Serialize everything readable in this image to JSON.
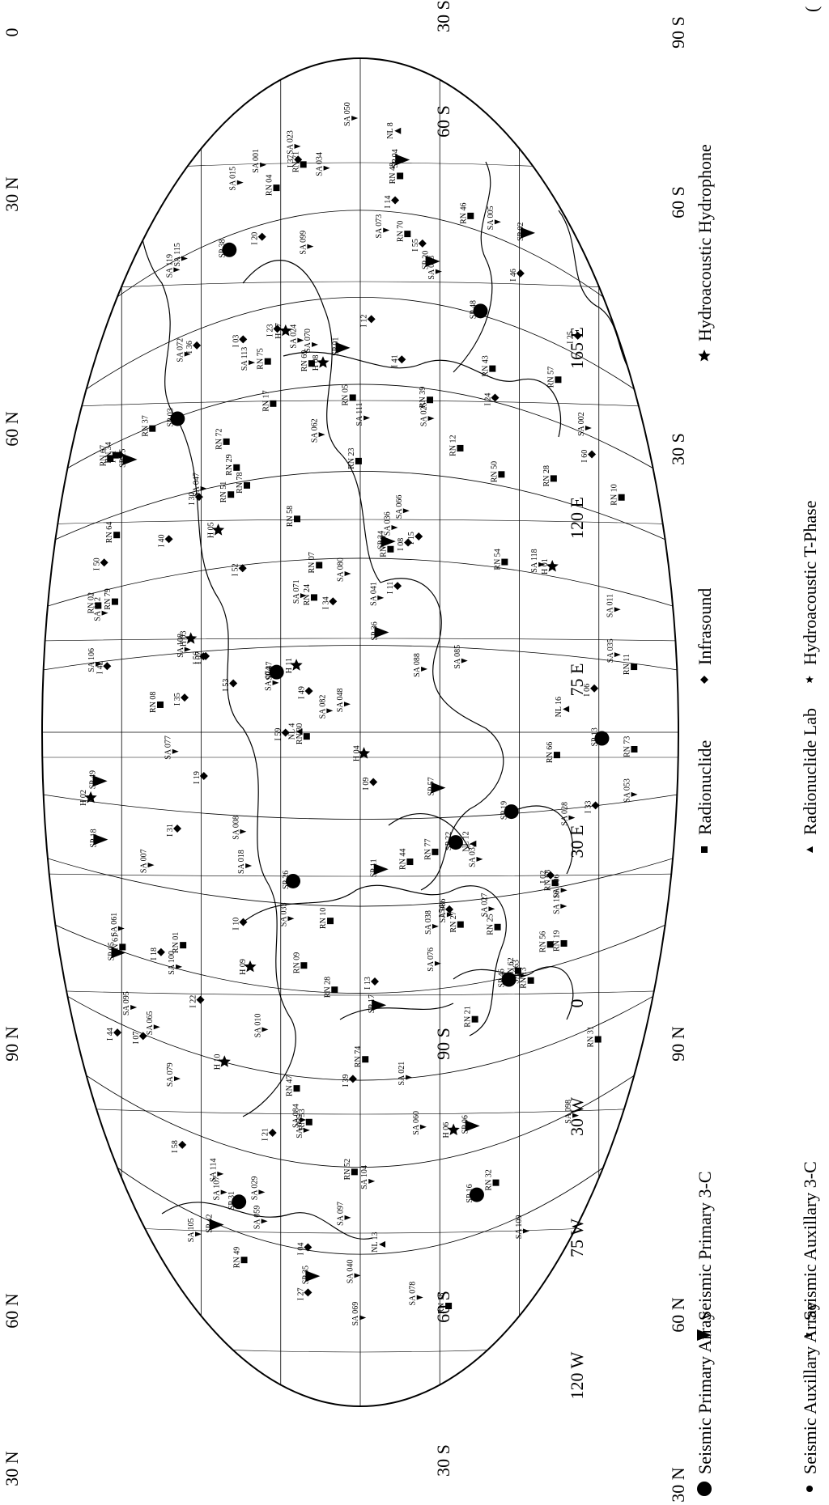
{
  "edge_labels": {
    "top": [
      "30 N",
      "60 N",
      "90 N",
      "60 N",
      "30 N",
      "0",
      "30 S",
      "60 S",
      "90 S",
      "60 S",
      "30 S"
    ],
    "bottom": [
      "30 N",
      "60 N",
      "90 N",
      "60 N",
      "30 N",
      "0",
      "30 S",
      "60 S",
      "90 S",
      "60 S",
      "30 S"
    ],
    "top_extra": "(",
    "meridians": [
      "165 E",
      "120 E",
      "75 E",
      "30 E",
      "0",
      "30 W",
      "75 W",
      "120 W"
    ]
  },
  "legend": [
    {
      "symbol": "big-circle",
      "label": "Seismic Primary Array"
    },
    {
      "symbol": "small-circle",
      "label": "Seismic Auxillary Array"
    },
    {
      "symbol": "big-triangle",
      "label": "Seismic Primary 3-C"
    },
    {
      "symbol": "small-triangle",
      "label": "Seismic Auxillary 3-C"
    },
    {
      "symbol": "square",
      "label": "Radionuclide"
    },
    {
      "symbol": "down-triangle",
      "label": "Radionuclide Lab"
    },
    {
      "symbol": "diamond",
      "label": "Infrasound"
    },
    {
      "symbol": "big-star",
      "label": "Hydroacoustic Hydrophone"
    },
    {
      "symbol": "small-star",
      "label": "Hydroacoustic T-Phase"
    }
  ],
  "stations": [
    {
      "label": "RN 79",
      "type": "square"
    },
    {
      "label": "I 59",
      "type": "diamond"
    },
    {
      "label": "RN 39",
      "type": "square"
    },
    {
      "label": "SA 024",
      "type": "small-triangle"
    },
    {
      "label": "RN 23",
      "type": "square"
    },
    {
      "label": "SA 095",
      "type": "small-triangle"
    },
    {
      "label": "RN 78",
      "type": "square"
    },
    {
      "label": "I 58",
      "type": "diamond"
    },
    {
      "label": "SA 070",
      "type": "small-triangle"
    },
    {
      "label": "RN 26",
      "type": "square"
    },
    {
      "label": "SA 032",
      "type": "small-triangle"
    },
    {
      "label": "RN 71",
      "type": "square"
    },
    {
      "label": "RN 77",
      "type": "square"
    },
    {
      "label": "I 60",
      "type": "diamond"
    },
    {
      "label": "H 11",
      "type": "big-star"
    },
    {
      "label": "RN 47",
      "type": "square"
    },
    {
      "label": "SA 071",
      "type": "small-triangle"
    },
    {
      "label": "I 36",
      "type": "diamond"
    },
    {
      "label": "RN 46",
      "type": "square"
    },
    {
      "label": "I 22",
      "type": "diamond"
    },
    {
      "label": "SA 098",
      "type": "small-triangle"
    },
    {
      "label": "NL 12",
      "type": "down-triangle"
    },
    {
      "label": "SA 069",
      "type": "small-triangle"
    },
    {
      "label": "RN 51",
      "type": "square"
    },
    {
      "label": "I 40",
      "type": "diamond"
    },
    {
      "label": "SA 076",
      "type": "small-triangle"
    },
    {
      "label": "SA 105",
      "type": "small-triangle"
    },
    {
      "label": "RN 10",
      "type": "square"
    },
    {
      "label": "SA 041",
      "type": "small-triangle"
    },
    {
      "label": "SA 055",
      "type": "small-triangle"
    },
    {
      "label": "SP 36",
      "type": "big-triangle"
    },
    {
      "label": "I 44",
      "type": "diamond"
    },
    {
      "label": "RN 57",
      "type": "square"
    },
    {
      "label": "SA 086",
      "type": "small-triangle"
    },
    {
      "label": "SA 060",
      "type": "small-triangle"
    },
    {
      "label": "SA 079",
      "type": "small-triangle"
    },
    {
      "label": "I 39",
      "type": "diamond"
    },
    {
      "label": "SP 02",
      "type": "big-triangle"
    },
    {
      "label": "I 07",
      "type": "diamond"
    },
    {
      "label": "SP 03",
      "type": "big-circle"
    },
    {
      "label": "SA 005",
      "type": "small-triangle"
    },
    {
      "label": "SP 04",
      "type": "big-triangle"
    },
    {
      "label": "RN 04",
      "type": "square"
    },
    {
      "label": "RN 07",
      "type": "square"
    },
    {
      "label": "RN 09",
      "type": "square"
    },
    {
      "label": "SP 31",
      "type": "big-circle"
    },
    {
      "label": "SP 22",
      "type": "big-circle"
    },
    {
      "label": "I 30",
      "type": "diamond"
    },
    {
      "label": "RN 37",
      "type": "square"
    },
    {
      "label": "SA 053",
      "type": "small-triangle"
    },
    {
      "label": "RN 58",
      "type": "square"
    },
    {
      "label": "RN 52",
      "type": "square"
    },
    {
      "label": "SA 080",
      "type": "small-triangle"
    },
    {
      "label": "SA 088",
      "type": "small-triangle"
    },
    {
      "label": "SA 006",
      "type": "small-triangle"
    },
    {
      "label": "I 04",
      "type": "diamond"
    },
    {
      "label": "H 01",
      "type": "big-star"
    },
    {
      "label": "RN 10",
      "type": "square"
    },
    {
      "label": "RN 32",
      "type": "square"
    },
    {
      "label": "SA 040",
      "type": "small-triangle"
    },
    {
      "label": "SA 021",
      "type": "small-triangle"
    },
    {
      "label": "SA 023",
      "type": "small-triangle"
    },
    {
      "label": "SP 13",
      "type": "big-circle"
    },
    {
      "label": "I 15",
      "type": "diamond"
    },
    {
      "label": "RN 21",
      "type": "square"
    },
    {
      "label": "I 34",
      "type": "diamond"
    },
    {
      "label": "RN 56",
      "type": "square"
    },
    {
      "label": "SP 35",
      "type": "big-triangle"
    },
    {
      "label": "I 55",
      "type": "diamond"
    },
    {
      "label": "SP 20",
      "type": "big-triangle"
    },
    {
      "label": "RN 08",
      "type": "square"
    },
    {
      "label": "I 06",
      "type": "diamond"
    },
    {
      "label": "SA 007",
      "type": "small-triangle"
    },
    {
      "label": "SA 100",
      "type": "small-triangle"
    },
    {
      "label": "SA 114",
      "type": "small-triangle"
    },
    {
      "label": "SP 34",
      "type": "big-triangle"
    },
    {
      "label": "I 46",
      "type": "diamond"
    },
    {
      "label": "I 52",
      "type": "diamond"
    },
    {
      "label": "RN 66",
      "type": "square"
    },
    {
      "label": "H 08",
      "type": "big-star"
    },
    {
      "label": "SA 074",
      "type": "small-triangle"
    },
    {
      "label": "RN 30",
      "type": "square"
    },
    {
      "label": "I 23",
      "type": "diamond"
    },
    {
      "label": "SP 05",
      "type": "big-triangle"
    },
    {
      "label": "RN 05",
      "type": "square"
    },
    {
      "label": "I 03",
      "type": "diamond"
    },
    {
      "label": "SA 085",
      "type": "small-triangle"
    },
    {
      "label": "I 31",
      "type": "diamond"
    },
    {
      "label": "SA 059",
      "type": "small-triangle"
    },
    {
      "label": "RN 54",
      "type": "square"
    },
    {
      "label": "RN 61",
      "type": "square"
    },
    {
      "label": "NL 13",
      "type": "down-triangle"
    },
    {
      "label": "SA 047",
      "type": "small-triangle"
    },
    {
      "label": "SP 38",
      "type": "big-circle"
    },
    {
      "label": "SA 028",
      "type": "small-triangle"
    },
    {
      "label": "RN 25",
      "type": "square"
    },
    {
      "label": "I 19",
      "type": "diamond"
    },
    {
      "label": "SA 061",
      "type": "small-triangle"
    },
    {
      "label": "I 33",
      "type": "diamond"
    },
    {
      "label": "RN 29",
      "type": "square"
    },
    {
      "label": "H 04",
      "type": "big-star"
    },
    {
      "label": "RN 64",
      "type": "square"
    },
    {
      "label": "RN 62",
      "type": "square"
    },
    {
      "label": "SA 048",
      "type": "small-triangle"
    },
    {
      "label": "SA 036",
      "type": "small-triangle"
    },
    {
      "label": "SA 029",
      "type": "small-triangle"
    },
    {
      "label": "SP 16",
      "type": "big-circle"
    },
    {
      "label": "SA 084",
      "type": "small-triangle"
    },
    {
      "label": "I 37",
      "type": "diamond"
    },
    {
      "label": "RN 28",
      "type": "square"
    },
    {
      "label": "SA 072",
      "type": "small-triangle"
    },
    {
      "label": "RN 49",
      "type": "square"
    },
    {
      "label": "SP 19",
      "type": "big-circle"
    },
    {
      "label": "SA 050",
      "type": "small-triangle"
    },
    {
      "label": "SA 099",
      "type": "small-triangle"
    },
    {
      "label": "SA 062",
      "type": "small-triangle"
    },
    {
      "label": "I 35",
      "type": "diamond"
    },
    {
      "label": "I 12",
      "type": "diamond"
    },
    {
      "label": "SP 11",
      "type": "big-triangle"
    },
    {
      "label": "SA 034",
      "type": "small-triangle"
    },
    {
      "label": "SA 035",
      "type": "small-triangle"
    },
    {
      "label": "I 27",
      "type": "diamond"
    },
    {
      "label": "RN 48",
      "type": "square"
    },
    {
      "label": "SP 26",
      "type": "big-circle"
    },
    {
      "label": "RN 13",
      "type": "square"
    },
    {
      "label": "SA 104",
      "type": "small-triangle"
    },
    {
      "label": "NL 8",
      "type": "down-triangle"
    },
    {
      "label": "SA 066",
      "type": "small-triangle"
    },
    {
      "label": "SP 42",
      "type": "big-triangle"
    },
    {
      "label": "SA 073",
      "type": "small-triangle"
    },
    {
      "label": "SA 038",
      "type": "small-triangle"
    },
    {
      "label": "RN 34",
      "type": "square"
    },
    {
      "label": "SA 082",
      "type": "small-triangle"
    },
    {
      "label": "SA 097",
      "type": "small-triangle"
    },
    {
      "label": "SP 15",
      "type": "big-triangle"
    },
    {
      "label": "RN 67",
      "type": "square"
    },
    {
      "label": "I 50",
      "type": "diamond"
    },
    {
      "label": "H 10",
      "type": "big-star"
    },
    {
      "label": "I 49",
      "type": "diamond"
    },
    {
      "label": "RN 68",
      "type": "square"
    },
    {
      "label": "H 09",
      "type": "big-star"
    },
    {
      "label": "RN 69",
      "type": "square"
    },
    {
      "label": "RN 43",
      "type": "square"
    },
    {
      "label": "I 11",
      "type": "diamond"
    },
    {
      "label": "RN 53",
      "type": "square"
    },
    {
      "label": "I 42",
      "type": "diamond"
    },
    {
      "label": "H 07",
      "type": "big-star"
    },
    {
      "label": "SA 027",
      "type": "small-triangle"
    },
    {
      "label": "I 18",
      "type": "diamond"
    },
    {
      "label": "SA 012",
      "type": "small-triangle"
    },
    {
      "label": "RN 17",
      "type": "square"
    },
    {
      "label": "SA 011",
      "type": "small-triangle"
    },
    {
      "label": "RN 12",
      "type": "square"
    },
    {
      "label": "RN 11",
      "type": "square"
    },
    {
      "label": "NL 4",
      "type": "down-triangle"
    },
    {
      "label": "SA 033",
      "type": "small-triangle"
    },
    {
      "label": "RN 31",
      "type": "square"
    },
    {
      "label": "I 25",
      "type": "diamond"
    },
    {
      "label": "H 05",
      "type": "big-star"
    },
    {
      "label": "SA 116",
      "type": "small-triangle"
    },
    {
      "label": "SA 118",
      "type": "small-triangle"
    },
    {
      "label": "SA 010",
      "type": "small-triangle"
    },
    {
      "label": "I 07",
      "type": "diamond"
    },
    {
      "label": "I 09",
      "type": "diamond"
    },
    {
      "label": "SA 008",
      "type": "small-triangle"
    },
    {
      "label": "RN 02",
      "type": "square"
    },
    {
      "label": "SA 001",
      "type": "small-triangle"
    },
    {
      "label": "SP 01",
      "type": "big-triangle"
    },
    {
      "label": "I 41",
      "type": "diamond"
    },
    {
      "label": "RN 01",
      "type": "square"
    },
    {
      "label": "I 08",
      "type": "diamond"
    },
    {
      "label": "SP 06",
      "type": "big-triangle"
    },
    {
      "label": "SA 078",
      "type": "small-triangle"
    },
    {
      "label": "SA 077",
      "type": "small-triangle"
    },
    {
      "label": "I 14",
      "type": "diamond"
    },
    {
      "label": "H 03",
      "type": "big-star"
    },
    {
      "label": "SA 106",
      "type": "small-triangle"
    },
    {
      "label": "RN 73",
      "type": "square"
    },
    {
      "label": "I 54",
      "type": "diamond"
    },
    {
      "label": "SA 002",
      "type": "small-triangle"
    },
    {
      "label": "I 02",
      "type": "diamond"
    },
    {
      "label": "RN 18",
      "type": "square"
    },
    {
      "label": "I 51",
      "type": "diamond"
    },
    {
      "label": "RN 28",
      "type": "square"
    },
    {
      "label": "SP 17",
      "type": "big-triangle"
    },
    {
      "label": "SA 119",
      "type": "small-triangle"
    },
    {
      "label": "SA 025",
      "type": "small-triangle"
    },
    {
      "label": "RN 50",
      "type": "square"
    },
    {
      "label": "RN 75",
      "type": "square"
    },
    {
      "label": "SA 107",
      "type": "small-triangle"
    },
    {
      "label": "RN 72",
      "type": "square"
    },
    {
      "label": "SP 48",
      "type": "big-circle"
    },
    {
      "label": "I 10",
      "type": "diamond"
    },
    {
      "label": "RN 74",
      "type": "square"
    },
    {
      "label": "SA 111",
      "type": "small-triangle"
    },
    {
      "label": "SP 46",
      "type": "big-circle"
    },
    {
      "label": "SA 063",
      "type": "small-triangle"
    },
    {
      "label": "SP 57",
      "type": "big-triangle"
    },
    {
      "label": "RN 24",
      "type": "square"
    },
    {
      "label": "I 20",
      "type": "diamond"
    },
    {
      "label": "SA 113",
      "type": "small-triangle"
    },
    {
      "label": "SA 115",
      "type": "small-triangle"
    },
    {
      "label": "I 56",
      "type": "diamond"
    },
    {
      "label": "SA 015",
      "type": "small-triangle"
    },
    {
      "label": "SA 013",
      "type": "small-triangle"
    },
    {
      "label": "SP 49",
      "type": "big-triangle"
    },
    {
      "label": "I 53",
      "type": "diamond"
    },
    {
      "label": "H 02",
      "type": "big-star"
    },
    {
      "label": "SA 109",
      "type": "small-triangle"
    },
    {
      "label": "SP 47",
      "type": "big-circle"
    },
    {
      "label": "RN 70",
      "type": "square"
    },
    {
      "label": "NL 16",
      "type": "down-triangle"
    },
    {
      "label": "SA 108",
      "type": "small-triangle"
    },
    {
      "label": "RN 44",
      "type": "square"
    },
    {
      "label": "SA 065",
      "type": "small-triangle"
    },
    {
      "label": "H 06",
      "type": "big-star"
    },
    {
      "label": "SA 018",
      "type": "small-triangle"
    },
    {
      "label": "I 13",
      "type": "diamond"
    },
    {
      "label": "RN 19",
      "type": "square"
    },
    {
      "label": "I 21",
      "type": "diamond"
    },
    {
      "label": "RN 27",
      "type": "square"
    },
    {
      "label": "SP 18",
      "type": "big-triangle"
    },
    {
      "label": "I 24",
      "type": "diamond"
    }
  ]
}
